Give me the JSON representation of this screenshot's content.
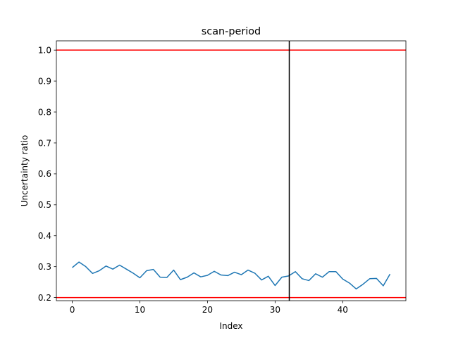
{
  "chart_data": {
    "type": "line",
    "title": "scan-period",
    "xlabel": "Index",
    "ylabel": "Uncertainty ratio",
    "xlim": [
      -2.35,
      49.35
    ],
    "ylim": [
      0.19,
      1.03
    ],
    "xticks": [
      0,
      10,
      20,
      30,
      40
    ],
    "yticks": [
      0.2,
      0.3,
      0.4,
      0.5,
      0.6,
      0.7,
      0.8,
      0.9,
      1.0
    ],
    "ytick_labels": [
      "0.2",
      "0.3",
      "0.4",
      "0.5",
      "0.6",
      "0.7",
      "0.8",
      "0.9",
      "1.0"
    ],
    "grid": false,
    "series": [
      {
        "color": "#1f77b4",
        "x": [
          0,
          1,
          2,
          3,
          4,
          5,
          6,
          7,
          8,
          9,
          10,
          11,
          12,
          13,
          14,
          15,
          16,
          17,
          18,
          19,
          20,
          21,
          22,
          23,
          24,
          25,
          26,
          27,
          28,
          29,
          30,
          31,
          32,
          33,
          34,
          35,
          36,
          37,
          38,
          39,
          40,
          41,
          42,
          43,
          44,
          45,
          46,
          47
        ],
        "values": [
          0.297,
          0.315,
          0.3,
          0.278,
          0.287,
          0.302,
          0.292,
          0.305,
          0.292,
          0.279,
          0.264,
          0.287,
          0.291,
          0.266,
          0.265,
          0.289,
          0.258,
          0.266,
          0.28,
          0.267,
          0.272,
          0.285,
          0.273,
          0.271,
          0.282,
          0.274,
          0.289,
          0.279,
          0.257,
          0.269,
          0.239,
          0.266,
          0.27,
          0.284,
          0.261,
          0.255,
          0.277,
          0.266,
          0.284,
          0.284,
          0.26,
          0.247,
          0.228,
          0.243,
          0.261,
          0.262,
          0.238,
          0.276
        ]
      }
    ],
    "hlines": [
      {
        "y": 1.0,
        "color": "#ff0000"
      },
      {
        "y": 0.2,
        "color": "#ff0000"
      }
    ],
    "vlines": [
      {
        "x": 32.1,
        "color": "#000000"
      }
    ]
  }
}
